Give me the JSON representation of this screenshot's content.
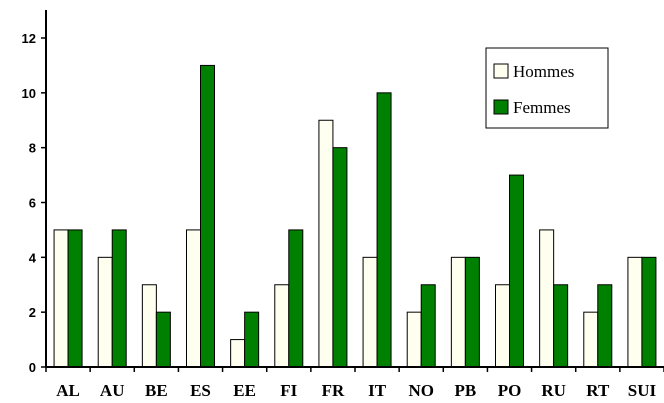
{
  "chart_data": {
    "type": "bar",
    "title": "",
    "xlabel": "",
    "ylabel": "",
    "ylim": [
      0,
      12
    ],
    "yticks": [
      0,
      2,
      4,
      6,
      8,
      10,
      12
    ],
    "grid": false,
    "legend_position": "top-right",
    "categories": [
      "AL",
      "AU",
      "BE",
      "ES",
      "EE",
      "FI",
      "FR",
      "IT",
      "NO",
      "PB",
      "PO",
      "RU",
      "RT",
      "SUI"
    ],
    "series": [
      {
        "name": "Hommes",
        "color": "#fffff0",
        "values": [
          5,
          4,
          3,
          5,
          1,
          3,
          9,
          4,
          2,
          4,
          3,
          5,
          2,
          4
        ]
      },
      {
        "name": "Femmes",
        "color": "#008000",
        "values": [
          5,
          5,
          2,
          11,
          2,
          5,
          8,
          10,
          3,
          4,
          7,
          3,
          3,
          4
        ]
      }
    ]
  }
}
